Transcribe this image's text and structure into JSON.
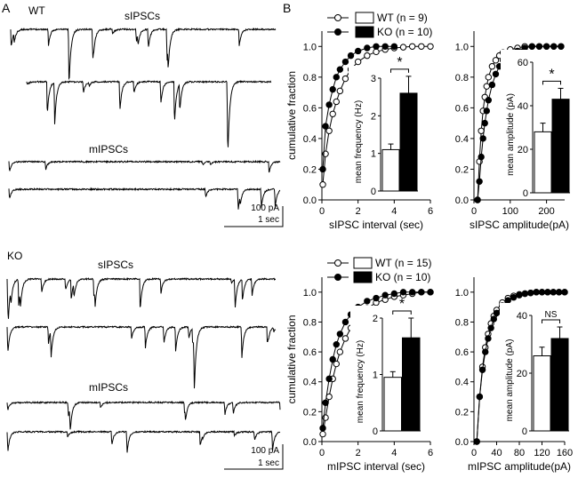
{
  "panel_a": {
    "letter": "A",
    "wt": {
      "genotype": "WT",
      "spont_title": "sIPSCs",
      "mini_title": "mIPSCs",
      "scale_amp": "100 pA",
      "scale_time": "1 sec"
    },
    "ko": {
      "genotype": "KO",
      "spont_title": "sIPSCs",
      "mini_title": "mIPSCs",
      "scale_amp": "100 pA",
      "scale_time": "1 sec"
    }
  },
  "panel_b": {
    "letter": "B",
    "legend_top": {
      "wt": "WT (n = 9)",
      "ko": "KO (n = 10)"
    },
    "legend_bottom": {
      "wt": "WT (n = 15)",
      "ko": "KO (n = 10)"
    },
    "colors": {
      "wt": "#ffffff",
      "ko": "#000000"
    }
  },
  "chart_data": [
    {
      "id": "sipsc-interval",
      "type": "line",
      "xlabel": "sIPSC interval (sec)",
      "ylabel": "cumulative fraction",
      "xlim": [
        0,
        6
      ],
      "ylim": [
        0,
        1.1
      ],
      "xticks": [
        "0",
        "2",
        "4",
        "6"
      ],
      "yticks": [
        "0.0",
        "0.2",
        "0.4",
        "0.6",
        "0.8",
        "1.0"
      ],
      "series": [
        {
          "group": "wt",
          "marker": "open-circle",
          "x": [
            0.05,
            0.2,
            0.4,
            0.6,
            0.8,
            1.0,
            1.3,
            1.6,
            2.0,
            2.5,
            3.0,
            3.5,
            4.0,
            4.5,
            5.0,
            5.5,
            6.0
          ],
          "y": [
            0.1,
            0.3,
            0.45,
            0.56,
            0.64,
            0.71,
            0.79,
            0.85,
            0.9,
            0.94,
            0.965,
            0.98,
            0.99,
            0.995,
            1.0,
            1.0,
            1.0
          ]
        },
        {
          "group": "ko",
          "marker": "filled-circle",
          "x": [
            0.05,
            0.2,
            0.4,
            0.6,
            0.8,
            1.0,
            1.3,
            1.6,
            2.0,
            2.5,
            3.0,
            3.5,
            4.0
          ],
          "y": [
            0.2,
            0.48,
            0.62,
            0.72,
            0.8,
            0.85,
            0.9,
            0.94,
            0.97,
            0.99,
            1.0,
            1.0,
            1.0
          ]
        }
      ],
      "inset": {
        "type": "bar",
        "ylabel": "mean frequency (Hz)",
        "ylim": [
          0,
          3
        ],
        "yticks": [
          "0",
          "1",
          "2",
          "3"
        ],
        "values": [
          1.1,
          2.6
        ],
        "errors": [
          0.15,
          0.45
        ],
        "significance": "*"
      }
    },
    {
      "id": "sipsc-amplitude",
      "type": "line",
      "xlabel": "sIPSC amplitude(pA)",
      "ylabel": "",
      "xlim": [
        0,
        250
      ],
      "ylim": [
        0,
        1.1
      ],
      "xticks": [
        "0",
        "100",
        "200"
      ],
      "yticks": [
        "0.0",
        "0.2",
        "0.4",
        "0.6",
        "0.8",
        "1.0"
      ],
      "series": [
        {
          "group": "wt",
          "marker": "open-circle",
          "x": [
            10,
            15,
            20,
            25,
            30,
            35,
            40,
            50,
            60,
            70,
            80,
            100,
            120,
            140,
            160,
            180,
            200,
            220,
            240
          ],
          "y": [
            0.0,
            0.25,
            0.45,
            0.58,
            0.67,
            0.74,
            0.8,
            0.87,
            0.91,
            0.94,
            0.96,
            0.98,
            0.99,
            1.0,
            1.0,
            1.0,
            1.0,
            1.0,
            1.0
          ]
        },
        {
          "group": "ko",
          "marker": "filled-circle",
          "x": [
            10,
            15,
            20,
            25,
            30,
            35,
            40,
            50,
            60,
            70,
            80,
            100,
            120,
            140,
            160,
            180,
            200,
            220,
            240
          ],
          "y": [
            0.0,
            0.12,
            0.28,
            0.4,
            0.5,
            0.58,
            0.65,
            0.75,
            0.82,
            0.87,
            0.91,
            0.95,
            0.97,
            0.99,
            1.0,
            1.0,
            1.0,
            1.0,
            1.0
          ]
        }
      ],
      "inset": {
        "type": "bar",
        "ylabel": "mean amplitude (pA)",
        "ylim": [
          0,
          60
        ],
        "yticks": [
          "0",
          "20",
          "40",
          "60"
        ],
        "values": [
          28,
          43
        ],
        "errors": [
          4,
          5
        ],
        "significance": "*"
      }
    },
    {
      "id": "mipsc-interval",
      "type": "line",
      "xlabel": "mIPSC interval (sec)",
      "ylabel": "cumulative fraction",
      "xlim": [
        0,
        6
      ],
      "ylim": [
        0,
        1.1
      ],
      "xticks": [
        "0",
        "2",
        "4",
        "6"
      ],
      "yticks": [
        "0.0",
        "0.2",
        "0.4",
        "0.6",
        "0.8",
        "1.0"
      ],
      "series": [
        {
          "group": "wt",
          "marker": "open-circle",
          "x": [
            0.05,
            0.2,
            0.4,
            0.6,
            0.8,
            1.0,
            1.3,
            1.6,
            2.0,
            2.5,
            3.0,
            3.5,
            4.0,
            4.5,
            5.0,
            5.5,
            6.0
          ],
          "y": [
            0.05,
            0.16,
            0.3,
            0.42,
            0.52,
            0.6,
            0.69,
            0.76,
            0.83,
            0.89,
            0.93,
            0.95,
            0.97,
            0.98,
            0.99,
            1.0,
            1.0
          ]
        },
        {
          "group": "ko",
          "marker": "filled-circle",
          "x": [
            0.05,
            0.2,
            0.4,
            0.6,
            0.8,
            1.0,
            1.3,
            1.6,
            2.0,
            2.5,
            3.0,
            3.5,
            4.0,
            4.5,
            5.0,
            5.5,
            6.0
          ],
          "y": [
            0.09,
            0.26,
            0.42,
            0.55,
            0.65,
            0.72,
            0.8,
            0.85,
            0.9,
            0.94,
            0.96,
            0.98,
            0.99,
            1.0,
            1.0,
            1.0,
            1.0
          ]
        }
      ],
      "inset": {
        "type": "bar",
        "ylabel": "mean frequency (Hz)",
        "ylim": [
          0,
          2
        ],
        "yticks": [
          "0",
          "1",
          "2"
        ],
        "values": [
          0.95,
          1.65
        ],
        "errors": [
          0.1,
          0.35
        ],
        "significance": "*"
      }
    },
    {
      "id": "mipsc-amplitude",
      "type": "line",
      "xlabel": "mIPSC amplitude(pA)",
      "ylabel": "",
      "xlim": [
        0,
        160
      ],
      "ylim": [
        0,
        1.1
      ],
      "xticks": [
        "0",
        "40",
        "80",
        "120",
        "160"
      ],
      "yticks": [
        "0.0",
        "0.2",
        "0.4",
        "0.6",
        "0.8",
        "1.0"
      ],
      "series": [
        {
          "group": "wt",
          "marker": "open-circle",
          "x": [
            5,
            10,
            15,
            20,
            25,
            30,
            35,
            40,
            50,
            60,
            70,
            80,
            90,
            100,
            110,
            120,
            130,
            140,
            150,
            160
          ],
          "y": [
            0.0,
            0.3,
            0.5,
            0.63,
            0.72,
            0.79,
            0.84,
            0.88,
            0.93,
            0.96,
            0.975,
            0.985,
            0.99,
            0.995,
            1.0,
            1.0,
            1.0,
            1.0,
            1.0,
            1.0
          ]
        },
        {
          "group": "ko",
          "marker": "filled-circle",
          "x": [
            5,
            10,
            15,
            20,
            25,
            30,
            35,
            40,
            50,
            60,
            70,
            80,
            90,
            100,
            110,
            120,
            130,
            140,
            150,
            160
          ],
          "y": [
            0.0,
            0.3,
            0.48,
            0.6,
            0.69,
            0.76,
            0.82,
            0.86,
            0.91,
            0.945,
            0.965,
            0.98,
            0.99,
            0.995,
            1.0,
            1.0,
            1.0,
            1.0,
            1.0,
            1.0
          ]
        }
      ],
      "inset": {
        "type": "bar",
        "ylabel": "mean amplitude (pA)",
        "ylim": [
          0,
          40
        ],
        "yticks": [
          "0",
          "20",
          "40"
        ],
        "values": [
          26,
          32
        ],
        "errors": [
          3,
          4
        ],
        "significance": "NS"
      }
    }
  ]
}
